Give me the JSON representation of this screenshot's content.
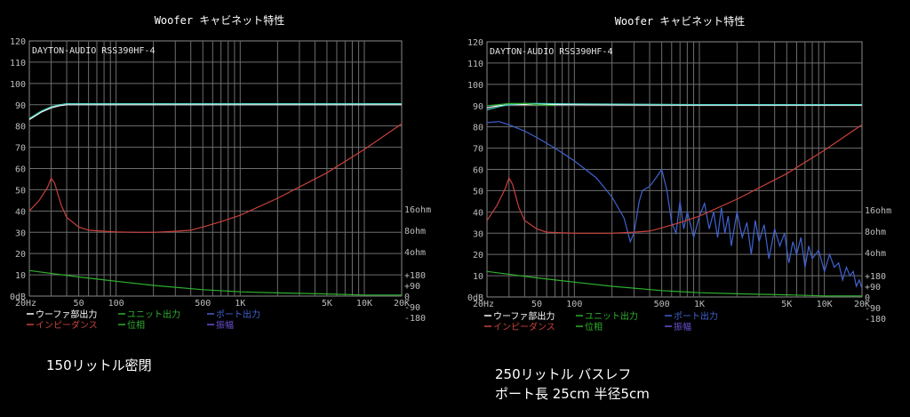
{
  "chart_data": [
    {
      "type": "line",
      "title": "Woofer キャビネット特性",
      "annotation": "DAYTON-AUDIO RSS390HF-4",
      "x_scale": "log",
      "xlim": [
        20,
        20000
      ],
      "ylim": [
        0,
        120
      ],
      "y_ticks": [
        "0dB",
        "10",
        "20",
        "30",
        "40",
        "50",
        "60",
        "70",
        "80",
        "90",
        "100",
        "110",
        "120"
      ],
      "x_ticks": [
        {
          "x": 20,
          "label": "20Hz"
        },
        {
          "x": 50,
          "label": "50"
        },
        {
          "x": 100,
          "label": "100"
        },
        {
          "x": 500,
          "label": "500"
        },
        {
          "x": 1000,
          "label": "1K"
        },
        {
          "x": 5000,
          "label": "5K"
        },
        {
          "x": 10000,
          "label": "10K"
        },
        {
          "x": 20000,
          "label": "20K"
        }
      ],
      "right_ticks": [
        {
          "y": 41,
          "label": "16ohm"
        },
        {
          "y": 31,
          "label": "8ohm"
        },
        {
          "y": 21,
          "label": "4ohm"
        },
        {
          "y": 10,
          "label": "+180"
        },
        {
          "y": 5,
          "label": "+90"
        },
        {
          "y": 0,
          "label": "0"
        },
        {
          "y": -5,
          "label": "-90"
        },
        {
          "y": -10,
          "label": "-180"
        }
      ],
      "legend": [
        {
          "label": "ウーファ部出力",
          "color": "#ffffff"
        },
        {
          "label": "ユニット出力",
          "color": "#2eaf2e"
        },
        {
          "label": "ポート出力",
          "color": "#3f63cf"
        },
        {
          "label": "インピーダンス",
          "color": "#c8413a"
        },
        {
          "label": "位相",
          "color": "#2eaf2e"
        },
        {
          "label": "振幅",
          "color": "#6a4fd0"
        }
      ],
      "grid": true,
      "series": [
        {
          "color": "#ffffff",
          "x": [
            20,
            25,
            30,
            35,
            40,
            50,
            100,
            1000,
            10000,
            20000
          ],
          "y": [
            83,
            86.5,
            88.5,
            89.5,
            90,
            90,
            90,
            90,
            90,
            90
          ]
        },
        {
          "color": "#4ad1bf",
          "x": [
            20,
            25,
            30,
            35,
            40,
            50,
            100,
            1000,
            10000,
            20000
          ],
          "y": [
            83.5,
            87,
            89,
            90,
            90.5,
            90.5,
            90.5,
            90.5,
            90.5,
            90.5
          ]
        },
        {
          "color": "#c8413a",
          "x": [
            20,
            24,
            28,
            30,
            32,
            36,
            40,
            50,
            60,
            80,
            100,
            150,
            200,
            300,
            400,
            500,
            700,
            1000,
            2000,
            5000,
            10000,
            20000
          ],
          "y": [
            40,
            45,
            51,
            55.5,
            53,
            43,
            37,
            32.5,
            31,
            30.5,
            30.2,
            30,
            30,
            30.5,
            31,
            32.5,
            35,
            38,
            46,
            58,
            69,
            81
          ]
        },
        {
          "color": "#2eaf2e",
          "x": [
            20,
            50,
            100,
            200,
            500,
            1000,
            2000,
            5000,
            10000,
            20000
          ],
          "y": [
            12,
            9,
            7,
            5,
            3,
            2,
            1.5,
            1,
            0.5,
            0.5
          ]
        }
      ]
    },
    {
      "type": "line",
      "title": "Woofer キャビネット特性",
      "annotation": "DAYTON-AUDIO RSS390HF-4",
      "x_scale": "log",
      "xlim": [
        20,
        20000
      ],
      "ylim": [
        0,
        120
      ],
      "y_ticks": [
        "0dB",
        "10",
        "20",
        "30",
        "40",
        "50",
        "60",
        "70",
        "80",
        "90",
        "100",
        "110",
        "120"
      ],
      "x_ticks": [
        {
          "x": 20,
          "label": "20Hz"
        },
        {
          "x": 50,
          "label": "50"
        },
        {
          "x": 100,
          "label": "100"
        },
        {
          "x": 500,
          "label": "500"
        },
        {
          "x": 1000,
          "label": "1K"
        },
        {
          "x": 5000,
          "label": "5K"
        },
        {
          "x": 10000,
          "label": "10K"
        },
        {
          "x": 20000,
          "label": "20K"
        }
      ],
      "right_ticks": [
        {
          "y": 41,
          "label": "16ohm"
        },
        {
          "y": 31,
          "label": "8ohm"
        },
        {
          "y": 21,
          "label": "4ohm"
        },
        {
          "y": 10,
          "label": "+180"
        },
        {
          "y": 5,
          "label": "+90"
        },
        {
          "y": 0,
          "label": "0"
        },
        {
          "y": -5,
          "label": "-90"
        },
        {
          "y": -10,
          "label": "-180"
        }
      ],
      "legend": [
        {
          "label": "ウーファ部出力",
          "color": "#ffffff"
        },
        {
          "label": "ユニット出力",
          "color": "#2eaf2e"
        },
        {
          "label": "ポート出力",
          "color": "#3f63cf"
        },
        {
          "label": "インピーダンス",
          "color": "#c8413a"
        },
        {
          "label": "位相",
          "color": "#2eaf2e"
        },
        {
          "label": "振幅",
          "color": "#6a4fd0"
        }
      ],
      "grid": true,
      "series": [
        {
          "color": "#ffffff",
          "x": [
            20,
            25,
            30,
            40,
            50,
            100,
            1000,
            10000,
            20000
          ],
          "y": [
            89,
            90,
            90.5,
            90.5,
            90.5,
            90.5,
            90.2,
            90.2,
            90.2
          ]
        },
        {
          "color": "#4ad1bf",
          "x": [
            20,
            25,
            30,
            40,
            50,
            100,
            1000,
            10000,
            20000
          ],
          "y": [
            88,
            89.5,
            90.5,
            91,
            91,
            90.8,
            90.5,
            90.5,
            90.5
          ]
        },
        {
          "color": "#2eaf2e",
          "x": [
            20,
            25,
            30,
            40,
            50,
            70
          ],
          "y": [
            90,
            90.5,
            91,
            91,
            90.5,
            90
          ]
        },
        {
          "color": "#3f63cf",
          "x": [
            20,
            25,
            30,
            40,
            50,
            70,
            100,
            150,
            200,
            250,
            280,
            300,
            330,
            350,
            400,
            450,
            500,
            550,
            600,
            650,
            700,
            750,
            800,
            900,
            1000,
            1100,
            1200,
            1300,
            1400,
            1500,
            1600,
            1700,
            1800,
            2000,
            2200,
            2400,
            2600,
            2800,
            3000,
            3300,
            3600,
            4000,
            4400,
            4800,
            5200,
            5600,
            6000,
            6500,
            7000,
            7500,
            8000,
            9000,
            10000,
            11000,
            12000,
            13000,
            14000,
            15000,
            16000,
            17000,
            18000,
            19000,
            20000
          ],
          "y": [
            82,
            82.5,
            81,
            78,
            75,
            70,
            64,
            56,
            47,
            37,
            26,
            30,
            45,
            50,
            52,
            56,
            60,
            50,
            35,
            30,
            45,
            32,
            40,
            28,
            38,
            44,
            32,
            40,
            28,
            42,
            30,
            38,
            24,
            40,
            28,
            35,
            20,
            36,
            26,
            34,
            18,
            32,
            24,
            30,
            16,
            26,
            20,
            28,
            14,
            24,
            18,
            22,
            12,
            20,
            14,
            16,
            8,
            14,
            10,
            12,
            5,
            8,
            4
          ]
        },
        {
          "color": "#c8413a",
          "x": [
            20,
            24,
            28,
            30,
            32,
            36,
            40,
            50,
            60,
            80,
            100,
            150,
            200,
            300,
            400,
            500,
            700,
            1000,
            2000,
            5000,
            10000,
            20000
          ],
          "y": [
            36,
            43,
            51,
            56,
            53,
            42,
            36,
            32,
            30.5,
            30.2,
            30,
            30,
            30,
            30.5,
            31,
            32.5,
            35,
            38,
            46,
            58,
            69,
            81
          ]
        },
        {
          "color": "#2eaf2e",
          "x": [
            20,
            50,
            100,
            200,
            500,
            1000,
            2000,
            5000,
            10000,
            20000
          ],
          "y": [
            12,
            9,
            7,
            5,
            3,
            2,
            1.5,
            1,
            0.5,
            0.5
          ]
        }
      ]
    }
  ],
  "captions": {
    "left": "150リットル密閉",
    "right_line1": "250リットル バスレフ",
    "right_line2": "ポート長 25cm 半径5cm"
  }
}
